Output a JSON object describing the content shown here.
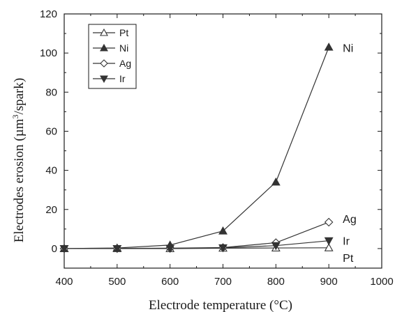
{
  "chart_data": {
    "type": "line",
    "xlabel": "Electrode temperature (°C)",
    "ylabel_parts": [
      "Electrodes erosion (µm",
      "3",
      "/spark)"
    ],
    "xlim": [
      400,
      1000
    ],
    "ylim": [
      -10,
      120
    ],
    "xticks": [
      400,
      500,
      600,
      700,
      800,
      900,
      1000
    ],
    "yticks": [
      0,
      20,
      40,
      60,
      80,
      100,
      120
    ],
    "grid": false,
    "legend_position": "top-left",
    "x": [
      400,
      500,
      600,
      700,
      800,
      900
    ],
    "series": [
      {
        "name": "Pt",
        "marker": "triangle-up",
        "filled": false,
        "values": [
          0,
          0,
          0,
          0.2,
          0.3,
          0.4
        ]
      },
      {
        "name": "Ni",
        "marker": "triangle-up",
        "filled": true,
        "values": [
          0,
          0.3,
          1.8,
          9,
          34,
          103
        ]
      },
      {
        "name": "Ag",
        "marker": "diamond",
        "filled": false,
        "values": [
          0,
          0.1,
          0.2,
          0.5,
          3,
          13.5
        ]
      },
      {
        "name": "Ir",
        "marker": "triangle-down",
        "filled": true,
        "values": [
          0,
          0,
          0.1,
          0.4,
          1.5,
          4
        ]
      }
    ],
    "end_labels": [
      "Ni",
      "Ag",
      "Ir",
      "Pt"
    ],
    "colors": {
      "line": "#333333",
      "axis": "#1a1a1a"
    }
  }
}
